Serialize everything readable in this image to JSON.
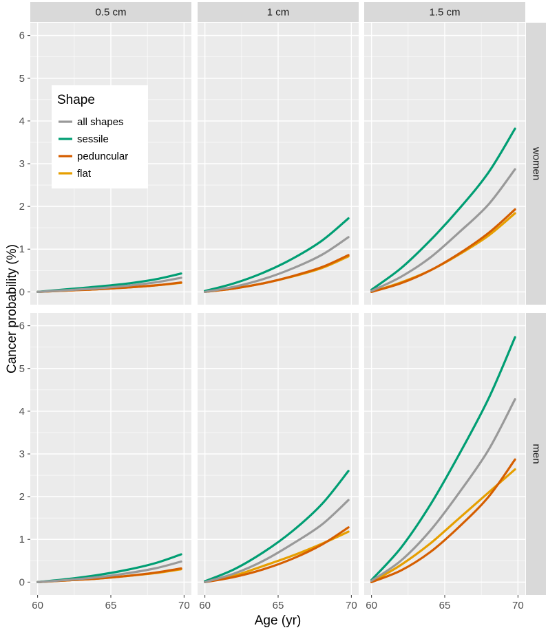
{
  "chart_data": {
    "type": "line",
    "xlabel": "Age (yr)",
    "ylabel": "Cancer probability (%)",
    "xlim": [
      59.5,
      70.5
    ],
    "ylim": [
      -0.3,
      6.3
    ],
    "x_ticks": [
      60,
      65,
      70
    ],
    "y_ticks": [
      0,
      1,
      2,
      3,
      4,
      5,
      6
    ],
    "grid": true,
    "legend": {
      "title": "Shape",
      "placement": "inside-top-left",
      "entries": [
        "all shapes",
        "sessile",
        "peduncular",
        "flat"
      ]
    },
    "columns": [
      "0.5 cm",
      "1 cm",
      "1.5 cm"
    ],
    "rows": [
      "women",
      "men"
    ],
    "series_colors": {
      "all shapes": "#999999",
      "sessile": "#009E73",
      "peduncular": "#D55E00",
      "flat": "#E69F00"
    },
    "x": [
      60,
      62,
      64,
      66,
      68,
      69.8
    ],
    "panels": [
      {
        "row": "women",
        "column": "0.5 cm",
        "series": [
          {
            "name": "all shapes",
            "values": [
              0.0,
              0.04,
              0.08,
              0.14,
              0.22,
              0.33
            ]
          },
          {
            "name": "sessile",
            "values": [
              0.0,
              0.06,
              0.12,
              0.19,
              0.29,
              0.43
            ]
          },
          {
            "name": "peduncular",
            "values": [
              0.0,
              0.03,
              0.06,
              0.1,
              0.15,
              0.22
            ]
          },
          {
            "name": "flat",
            "values": [
              0.0,
              0.03,
              0.06,
              0.1,
              0.15,
              0.21
            ]
          }
        ]
      },
      {
        "row": "women",
        "column": "1 cm",
        "series": [
          {
            "name": "all shapes",
            "values": [
              0.0,
              0.12,
              0.3,
              0.55,
              0.87,
              1.28
            ]
          },
          {
            "name": "sessile",
            "values": [
              0.02,
              0.2,
              0.45,
              0.78,
              1.2,
              1.72
            ]
          },
          {
            "name": "peduncular",
            "values": [
              0.0,
              0.08,
              0.2,
              0.37,
              0.58,
              0.86
            ]
          },
          {
            "name": "flat",
            "values": [
              0.0,
              0.08,
              0.2,
              0.36,
              0.56,
              0.83
            ]
          }
        ]
      },
      {
        "row": "women",
        "column": "1.5 cm",
        "series": [
          {
            "name": "all shapes",
            "values": [
              0.02,
              0.35,
              0.8,
              1.4,
              2.05,
              2.87
            ]
          },
          {
            "name": "sessile",
            "values": [
              0.05,
              0.55,
              1.2,
              1.95,
              2.8,
              3.82
            ]
          },
          {
            "name": "peduncular",
            "values": [
              0.0,
              0.2,
              0.5,
              0.9,
              1.38,
              1.93
            ]
          },
          {
            "name": "flat",
            "values": [
              0.0,
              0.22,
              0.5,
              0.88,
              1.32,
              1.84
            ]
          }
        ]
      },
      {
        "row": "men",
        "column": "0.5 cm",
        "series": [
          {
            "name": "all shapes",
            "values": [
              0.0,
              0.05,
              0.11,
              0.2,
              0.32,
              0.48
            ]
          },
          {
            "name": "sessile",
            "values": [
              0.0,
              0.07,
              0.16,
              0.28,
              0.44,
              0.65
            ]
          },
          {
            "name": "peduncular",
            "values": [
              0.0,
              0.04,
              0.08,
              0.14,
              0.22,
              0.32
            ]
          },
          {
            "name": "flat",
            "values": [
              0.0,
              0.04,
              0.08,
              0.14,
              0.21,
              0.3
            ]
          }
        ]
      },
      {
        "row": "men",
        "column": "1 cm",
        "series": [
          {
            "name": "all shapes",
            "values": [
              0.0,
              0.2,
              0.5,
              0.9,
              1.35,
              1.92
            ]
          },
          {
            "name": "sessile",
            "values": [
              0.02,
              0.3,
              0.7,
              1.2,
              1.83,
              2.6
            ]
          },
          {
            "name": "peduncular",
            "values": [
              0.0,
              0.12,
              0.3,
              0.55,
              0.88,
              1.28
            ]
          },
          {
            "name": "flat",
            "values": [
              0.0,
              0.15,
              0.38,
              0.62,
              0.9,
              1.18
            ]
          }
        ]
      },
      {
        "row": "men",
        "column": "1.5 cm",
        "series": [
          {
            "name": "all shapes",
            "values": [
              0.03,
              0.5,
              1.2,
              2.1,
              3.1,
              4.28
            ]
          },
          {
            "name": "sessile",
            "values": [
              0.05,
              0.8,
              1.8,
              3.0,
              4.3,
              5.73
            ]
          },
          {
            "name": "peduncular",
            "values": [
              0.0,
              0.27,
              0.7,
              1.3,
              2.0,
              2.87
            ]
          },
          {
            "name": "flat",
            "values": [
              0.0,
              0.4,
              0.9,
              1.5,
              2.1,
              2.64
            ]
          }
        ]
      }
    ]
  }
}
